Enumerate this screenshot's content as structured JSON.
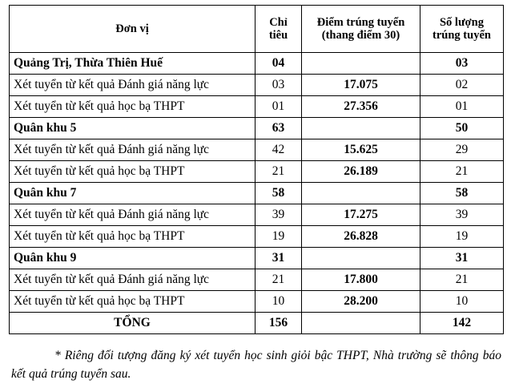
{
  "table": {
    "headers": {
      "unit": "Đơn vị",
      "quota": "Chỉ tiêu",
      "score": "Điểm trúng tuyển (thang điểm 30)",
      "admitted": "Số lượng trúng tuyển"
    },
    "groups": [
      {
        "name": "Quảng Trị, Thừa Thiên Huế",
        "quota": "04",
        "admitted": "03",
        "rows": [
          {
            "method": "Xét tuyển từ kết quả Đánh giá năng lực",
            "quota": "03",
            "score": "17.075",
            "admitted": "02"
          },
          {
            "method": "Xét tuyển từ kết quả học bạ THPT",
            "quota": "01",
            "score": "27.356",
            "admitted": "01"
          }
        ]
      },
      {
        "name": "Quân khu 5",
        "quota": "63",
        "admitted": "50",
        "rows": [
          {
            "method": "Xét tuyển từ kết quả Đánh giá năng lực",
            "quota": "42",
            "score": "15.625",
            "admitted": "29"
          },
          {
            "method": "Xét tuyển từ kết quả học bạ THPT",
            "quota": "21",
            "score": "26.189",
            "admitted": "21"
          }
        ]
      },
      {
        "name": "Quân khu 7",
        "quota": "58",
        "admitted": "58",
        "rows": [
          {
            "method": "Xét tuyển từ kết quả Đánh giá năng lực",
            "quota": "39",
            "score": "17.275",
            "admitted": "39"
          },
          {
            "method": "Xét tuyển từ kết quả học bạ THPT",
            "quota": "19",
            "score": "26.828",
            "admitted": "19"
          }
        ]
      },
      {
        "name": "Quân khu 9",
        "quota": "31",
        "admitted": "31",
        "rows": [
          {
            "method": "Xét tuyển từ kết quả Đánh giá năng lực",
            "quota": "21",
            "score": "17.800",
            "admitted": "21"
          },
          {
            "method": "Xét tuyển từ kết quả học bạ THPT",
            "quota": "10",
            "score": "28.200",
            "admitted": "10"
          }
        ]
      }
    ],
    "total": {
      "label": "TỔNG",
      "quota": "156",
      "admitted": "142"
    }
  },
  "note": "* Riêng đối tượng đăng ký xét tuyển học sinh giỏi bậc THPT, Nhà trường sẽ thông báo kết quả trúng tuyển sau."
}
